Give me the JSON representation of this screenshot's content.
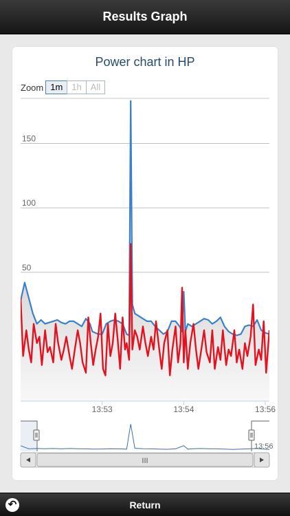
{
  "header": {
    "title": "Results Graph"
  },
  "chart": {
    "title": "Power chart in HP",
    "zoom_label": "Zoom",
    "zoom_buttons": [
      "1m",
      "1h",
      "All"
    ],
    "zoom_selected": "1m",
    "navigator_time_label": "13:56",
    "scrollbar_grip": "III"
  },
  "footer": {
    "return_label": "Return"
  },
  "colors": {
    "blue": "#3b80c9",
    "red": "#e4111f",
    "title": "#274b6d"
  },
  "icons": {
    "return": "return-arrow-icon"
  },
  "chart_data": {
    "type": "line",
    "title": "Power chart in HP",
    "y_ticks": [
      -50,
      0,
      50,
      100,
      150
    ],
    "ylim": [
      -50,
      185
    ],
    "x_ticks": [
      {
        "t": 1.0,
        "label": "13:53"
      },
      {
        "t": 2.0,
        "label": "13:54"
      },
      {
        "t": 3.0,
        "label": "13:56"
      }
    ],
    "xlim": [
      0,
      3.05
    ],
    "grid": true,
    "series": [
      {
        "color": "#3b80c9",
        "x": [
          0.0,
          0.05,
          0.1,
          0.15,
          0.2,
          0.25,
          0.3,
          0.35,
          0.4,
          0.45,
          0.5,
          0.55,
          0.6,
          0.65,
          0.7,
          0.75,
          0.8,
          0.85,
          0.88,
          0.95,
          1.0,
          1.05,
          1.1,
          1.15,
          1.2,
          1.25,
          1.3,
          1.33,
          1.35,
          1.37,
          1.4,
          1.45,
          1.5,
          1.55,
          1.6,
          1.65,
          1.7,
          1.75,
          1.8,
          1.85,
          1.9,
          1.95,
          1.98,
          2.0,
          2.02,
          2.05,
          2.1,
          2.15,
          2.2,
          2.25,
          2.3,
          2.35,
          2.4,
          2.45,
          2.5,
          2.55,
          2.6,
          2.65,
          2.7,
          2.75,
          2.8,
          2.85,
          2.9,
          2.95,
          3.0,
          3.05
        ],
        "y": [
          28,
          42,
          30,
          18,
          10,
          13,
          10,
          11,
          12,
          13,
          11,
          10,
          12,
          12,
          10,
          8,
          14,
          10,
          4,
          2,
          2,
          10,
          12,
          13,
          12,
          10,
          2,
          1,
          183,
          25,
          18,
          16,
          14,
          12,
          12,
          8,
          5,
          2,
          4,
          12,
          12,
          8,
          4,
          35,
          4,
          10,
          8,
          10,
          12,
          14,
          13,
          10,
          12,
          15,
          8,
          4,
          2,
          1,
          2,
          8,
          9,
          8,
          13,
          5,
          3,
          2
        ]
      },
      {
        "color": "#e4111f",
        "x": [
          0.0,
          0.03,
          0.07,
          0.1,
          0.13,
          0.16,
          0.2,
          0.23,
          0.26,
          0.3,
          0.33,
          0.36,
          0.4,
          0.43,
          0.46,
          0.5,
          0.53,
          0.56,
          0.6,
          0.63,
          0.66,
          0.7,
          0.73,
          0.76,
          0.8,
          0.83,
          0.86,
          0.89,
          0.92,
          0.95,
          0.98,
          1.01,
          1.04,
          1.07,
          1.1,
          1.13,
          1.16,
          1.19,
          1.22,
          1.25,
          1.28,
          1.3,
          1.33,
          1.35,
          1.37,
          1.4,
          1.43,
          1.46,
          1.5,
          1.53,
          1.56,
          1.6,
          1.63,
          1.66,
          1.7,
          1.73,
          1.76,
          1.8,
          1.83,
          1.86,
          1.9,
          1.93,
          1.96,
          1.98,
          2.0,
          2.02,
          2.05,
          2.08,
          2.12,
          2.15,
          2.18,
          2.22,
          2.25,
          2.28,
          2.32,
          2.35,
          2.38,
          2.42,
          2.45,
          2.48,
          2.52,
          2.55,
          2.58,
          2.62,
          2.65,
          2.68,
          2.72,
          2.75,
          2.78,
          2.82,
          2.85,
          2.88,
          2.92,
          2.95,
          2.98,
          3.01,
          3.05
        ],
        "y": [
          30,
          -15,
          5,
          -10,
          -20,
          10,
          -5,
          0,
          -22,
          5,
          -12,
          -8,
          -20,
          10,
          -5,
          -18,
          -10,
          0,
          -15,
          -25,
          -12,
          5,
          -5,
          -20,
          -28,
          15,
          -5,
          -22,
          -10,
          0,
          18,
          -25,
          -30,
          10,
          -15,
          -5,
          18,
          -2,
          -25,
          15,
          -10,
          -5,
          -18,
          72,
          -10,
          5,
          0,
          -10,
          8,
          -5,
          -15,
          0,
          -10,
          12,
          -10,
          -25,
          -5,
          5,
          -30,
          -10,
          8,
          -20,
          -5,
          38,
          -20,
          5,
          -25,
          -5,
          10,
          -10,
          -25,
          -8,
          5,
          -12,
          -20,
          5,
          -25,
          -8,
          -18,
          5,
          -22,
          -10,
          -15,
          5,
          -20,
          -10,
          -25,
          -5,
          -15,
          0,
          25,
          -22,
          -10,
          -18,
          12,
          -28,
          5
        ]
      }
    ],
    "navigator": {
      "x": [
        0.0,
        0.1,
        0.2,
        0.3,
        0.4,
        0.5,
        0.6,
        0.7,
        0.8,
        0.9,
        1.0,
        1.1,
        1.2,
        1.3,
        1.35,
        1.4,
        1.5,
        1.6,
        1.7,
        1.8,
        1.9,
        2.0,
        2.05,
        2.1,
        2.2,
        2.3,
        2.4,
        2.5,
        2.6,
        2.7,
        2.8,
        2.9,
        3.0,
        3.05
      ],
      "y": [
        30,
        8,
        10,
        9,
        10,
        8,
        10,
        9,
        8,
        6,
        7,
        9,
        8,
        6,
        183,
        12,
        9,
        8,
        6,
        5,
        8,
        30,
        6,
        8,
        10,
        9,
        8,
        6,
        4,
        6,
        8,
        10,
        5,
        4
      ]
    }
  }
}
